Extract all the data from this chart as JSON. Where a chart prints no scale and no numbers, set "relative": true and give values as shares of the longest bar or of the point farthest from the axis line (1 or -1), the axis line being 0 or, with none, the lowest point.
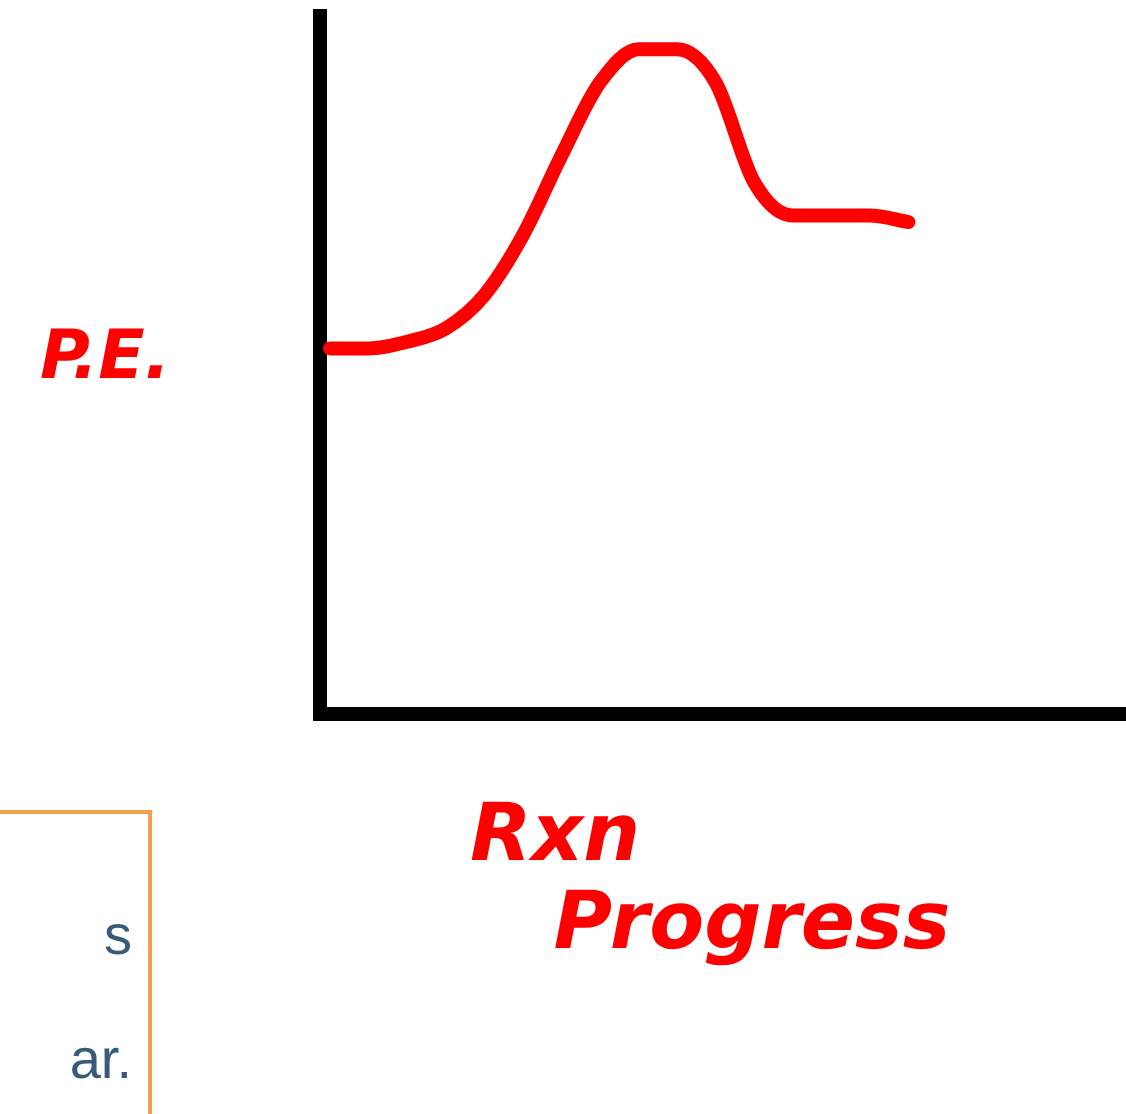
{
  "chart_data": {
    "type": "line",
    "relative": true,
    "ylabel": "P.E.",
    "xlabel": "Rxn Progress",
    "categories": [
      null,
      null,
      null,
      null,
      null,
      null,
      null,
      null,
      null,
      null,
      null,
      null,
      null,
      null,
      null,
      null
    ],
    "series": [
      {
        "color": "#ff0000",
        "values": [
          0.55,
          0.55,
          0.56,
          0.58,
          0.63,
          0.72,
          0.84,
          0.95,
          1.0,
          1.0,
          0.95,
          0.8,
          0.75,
          0.75,
          0.75,
          0.74
        ]
      }
    ],
    "grid": false,
    "legend": false,
    "marker": "none",
    "line_style": "solid",
    "annotations": [
      "s\nar."
    ]
  }
}
